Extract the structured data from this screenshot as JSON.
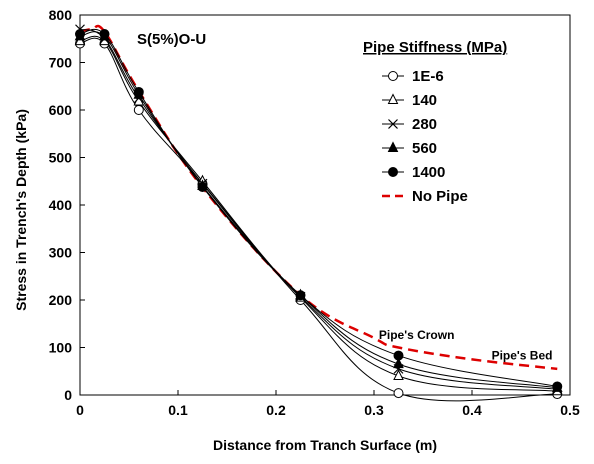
{
  "chart_data": {
    "type": "line",
    "panel_label": "S(5%)O-U",
    "xlabel": "Distance from Tranch Surface (m)",
    "ylabel": "Stress in Trench's Depth (kPa)",
    "xlim": [
      0,
      0.5
    ],
    "ylim": [
      0,
      800
    ],
    "x_ticks": [
      "0",
      "0.1",
      "0.2",
      "0.3",
      "0.4",
      "0.5"
    ],
    "y_ticks": [
      "0",
      "100",
      "200",
      "300",
      "400",
      "500",
      "600",
      "700",
      "800"
    ],
    "grid": false,
    "legend_title": "Pipe Stiffness (MPa)",
    "legend_position": "top-right",
    "series": [
      {
        "name": "1E-6",
        "marker": "circle-open",
        "color": "#000000",
        "x": [
          0,
          0.025,
          0.06,
          0.125,
          0.225,
          0.325,
          0.487
        ],
        "y": [
          740,
          740,
          600,
          445,
          200,
          4,
          2
        ]
      },
      {
        "name": "140",
        "marker": "triangle-open",
        "color": "#000000",
        "x": [
          0,
          0.025,
          0.06,
          0.125,
          0.225,
          0.325,
          0.487
        ],
        "y": [
          745,
          745,
          618,
          450,
          205,
          40,
          8
        ]
      },
      {
        "name": "280",
        "marker": "x",
        "color": "#000000",
        "x": [
          0,
          0.025,
          0.06,
          0.125,
          0.225,
          0.325,
          0.487
        ],
        "y": [
          770,
          750,
          625,
          445,
          207,
          55,
          12
        ]
      },
      {
        "name": "560",
        "marker": "triangle-filled",
        "color": "#000000",
        "x": [
          0,
          0.025,
          0.06,
          0.125,
          0.225,
          0.325,
          0.487
        ],
        "y": [
          755,
          755,
          632,
          440,
          210,
          65,
          15
        ]
      },
      {
        "name": "1400",
        "marker": "circle-filled",
        "color": "#000000",
        "x": [
          0,
          0.025,
          0.06,
          0.125,
          0.225,
          0.325,
          0.487
        ],
        "y": [
          760,
          760,
          638,
          438,
          210,
          83,
          18
        ]
      },
      {
        "name": "No Pipe",
        "marker": "none",
        "style": "dashed",
        "color": "#dd0000",
        "x": [
          0,
          0.012,
          0.025,
          0.06,
          0.125,
          0.225,
          0.3,
          0.325,
          0.4,
          0.487
        ],
        "y": [
          765,
          770,
          765,
          640,
          437,
          210,
          120,
          100,
          75,
          55
        ]
      }
    ],
    "annotations": [
      {
        "text": "Pipe's Crown",
        "x": 0.305,
        "y": 118
      },
      {
        "text": "Pipe's Bed",
        "x": 0.42,
        "y": 75
      }
    ]
  }
}
